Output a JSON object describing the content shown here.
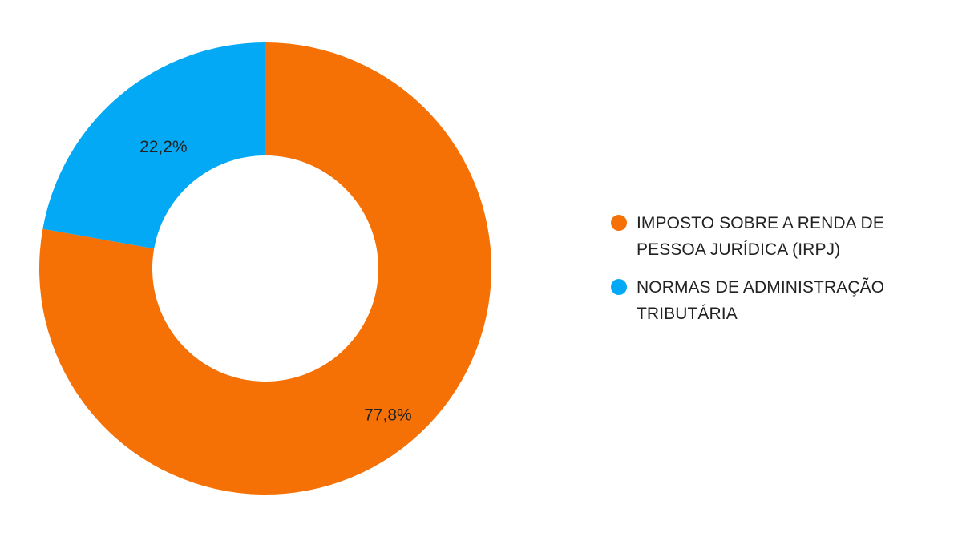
{
  "chart_data": {
    "type": "pie",
    "donut": true,
    "categories": [
      "IMPOSTO SOBRE A RENDA DE PESSOA JURÍDICA (IRPJ)",
      "NORMAS DE ADMINISTRAÇÃO TRIBUTÁRIA"
    ],
    "values": [
      77.8,
      22.2
    ],
    "data_labels": [
      "77,8%",
      "22,2%"
    ],
    "colors": [
      "#f57005",
      "#03a9f4"
    ],
    "legend_position": "right",
    "title": "",
    "xlabel": "",
    "ylabel": ""
  },
  "legend": {
    "items": [
      {
        "lines": [
          "IMPOSTO SOBRE A RENDA DE",
          "PESSOA JURÍDICA (IRPJ)"
        ],
        "color": "#f57005"
      },
      {
        "lines": [
          "NORMAS DE ADMINISTRAÇÃO",
          "TRIBUTÁRIA"
        ],
        "color": "#03a9f4"
      }
    ]
  }
}
